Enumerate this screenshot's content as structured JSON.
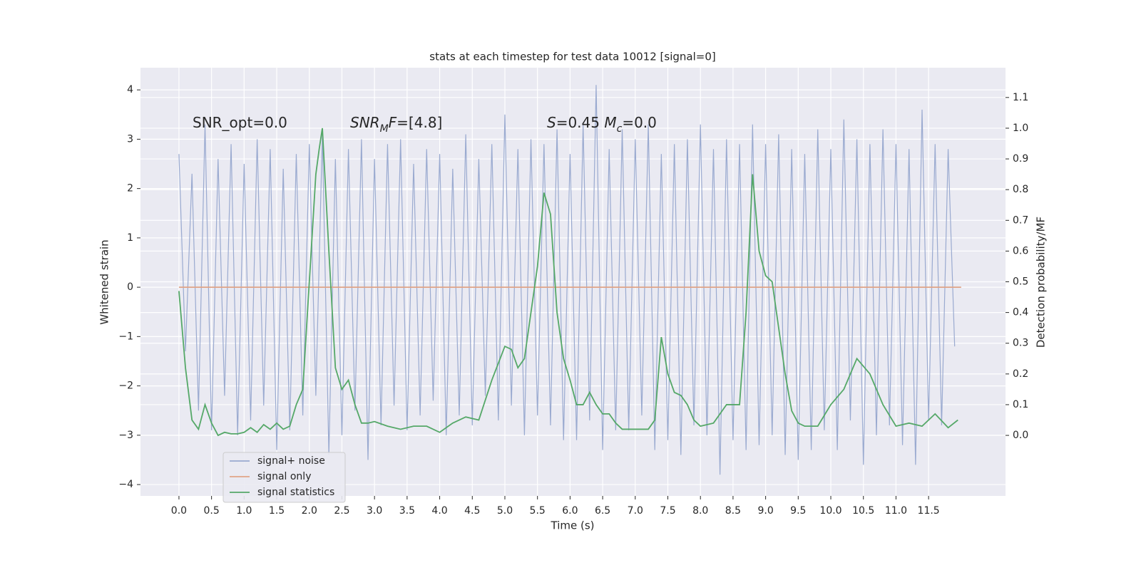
{
  "chart_data": {
    "type": "line",
    "title": "stats at each timestep for test data 10012 [signal=0]",
    "xlabel": "Time (s)",
    "ylabel": "Whitened strain",
    "y2label": "Detection probability/MF",
    "xlim": [
      -0.59,
      12.68
    ],
    "ylim": [
      -4.23,
      4.45
    ],
    "y2lim": [
      -0.197,
      1.197
    ],
    "xticks": [
      {
        "value": 0,
        "label": "0.0"
      },
      0.5,
      {
        "value": 1,
        "label": "1.0"
      },
      1.5,
      {
        "value": 2,
        "label": "2.0"
      },
      2.5,
      {
        "value": 3,
        "label": "3.0"
      },
      3.5,
      {
        "value": 4,
        "label": "4.0"
      },
      4.5,
      {
        "value": 5,
        "label": "5.0"
      },
      5.5,
      {
        "value": 6,
        "label": "6.0"
      },
      6.5,
      {
        "value": 7,
        "label": "7.0"
      },
      7.5,
      {
        "value": 8,
        "label": "8.0"
      },
      8.5,
      {
        "value": 9,
        "label": "9.0"
      },
      9.5,
      {
        "value": 10,
        "label": "10.0"
      },
      10.5,
      {
        "value": 11,
        "label": "11.0"
      },
      11.5
    ],
    "yticks": [
      {
        "value": -4,
        "label": "−4"
      },
      {
        "value": -3,
        "label": "−3"
      },
      {
        "value": -2,
        "label": "−2"
      },
      {
        "value": -1,
        "label": "−1"
      },
      0,
      1,
      2,
      3,
      4
    ],
    "y2ticks": [
      {
        "value": 0,
        "label": "0.0"
      },
      0.1,
      0.2,
      0.3,
      0.4,
      0.5,
      0.6,
      0.7,
      0.8,
      0.9,
      {
        "value": 1,
        "label": "1.0"
      },
      1.1
    ],
    "grid": true,
    "legend_loc": "lower left",
    "annotations": [
      [
        {
          "text": "SNR_opt=0.0"
        }
      ],
      [
        {
          "text": "SNR",
          "italic": true
        },
        {
          "text": "M",
          "italic": true,
          "sub": true
        },
        {
          "text": "F",
          "italic": true
        },
        {
          "text": "=[4.8]"
        }
      ],
      [
        {
          "text": "S",
          "italic": true
        },
        {
          "text": "=0.45  "
        },
        {
          "text": "M",
          "italic": true
        },
        {
          "text": "c",
          "italic": true,
          "sub": true
        },
        {
          "text": "=0.0"
        }
      ]
    ],
    "series": [
      {
        "name": "signal+ noise",
        "color": "#9aaad0",
        "axis": "y",
        "x": [
          0,
          0.1,
          0.2,
          0.3,
          0.4,
          0.5,
          0.6,
          0.7,
          0.8,
          0.9,
          1,
          1.1,
          1.2,
          1.3,
          1.4,
          1.5,
          1.6,
          1.7,
          1.8,
          1.9,
          2,
          2.1,
          2.2,
          2.3,
          2.4,
          2.5,
          2.6,
          2.7,
          2.8,
          2.9,
          3,
          3.1,
          3.2,
          3.3,
          3.4,
          3.5,
          3.6,
          3.7,
          3.8,
          3.9,
          4,
          4.1,
          4.2,
          4.3,
          4.4,
          4.5,
          4.6,
          4.7,
          4.8,
          4.9,
          5,
          5.1,
          5.2,
          5.3,
          5.4,
          5.5,
          5.6,
          5.7,
          5.8,
          5.9,
          6,
          6.1,
          6.2,
          6.3,
          6.4,
          6.5,
          6.6,
          6.7,
          6.8,
          6.9,
          7,
          7.1,
          7.2,
          7.3,
          7.4,
          7.5,
          7.6,
          7.7,
          7.8,
          7.9,
          8,
          8.1,
          8.2,
          8.3,
          8.4,
          8.5,
          8.6,
          8.7,
          8.8,
          8.9,
          9,
          9.1,
          9.2,
          9.3,
          9.4,
          9.5,
          9.6,
          9.7,
          9.8,
          9.9,
          10,
          10.1,
          10.2,
          10.3,
          10.4,
          10.5,
          10.6,
          10.7,
          10.8,
          10.9,
          11,
          11.1,
          11.2,
          11.3,
          11.4,
          11.5,
          11.6,
          11.7,
          11.8,
          11.9
        ],
        "values": [
          2.7,
          -1.3,
          2.3,
          -2.5,
          3.3,
          -2.9,
          2.6,
          -2.2,
          2.9,
          -3.0,
          2.5,
          -2.7,
          3.0,
          -2.4,
          2.8,
          -3.3,
          2.4,
          -2.9,
          2.7,
          -2.6,
          2.9,
          -2.2,
          3.1,
          -3.4,
          2.6,
          -3.0,
          2.8,
          -2.5,
          3.0,
          -3.5,
          2.6,
          -2.8,
          2.9,
          -2.4,
          3.0,
          -2.9,
          2.5,
          -2.6,
          2.8,
          -2.3,
          2.7,
          -3.0,
          2.4,
          -2.6,
          3.1,
          -2.8,
          2.6,
          -2.2,
          2.9,
          -2.7,
          3.5,
          -2.4,
          2.8,
          -3.0,
          3.0,
          -2.6,
          2.9,
          -2.8,
          3.2,
          -3.1,
          2.7,
          -3.1,
          3.3,
          -2.7,
          4.1,
          -3.3,
          2.8,
          -2.9,
          3.2,
          -2.9,
          3.0,
          -2.6,
          3.3,
          -3.3,
          2.7,
          -3.1,
          2.9,
          -3.4,
          3.0,
          -2.8,
          3.3,
          -3.0,
          2.8,
          -3.8,
          3.0,
          -3.1,
          2.9,
          -3.3,
          3.3,
          -3.2,
          2.9,
          -3.0,
          3.1,
          -3.4,
          2.8,
          -3.5,
          2.7,
          -3.3,
          3.2,
          -2.9,
          2.8,
          -3.3,
          3.4,
          -2.7,
          3.0,
          -3.6,
          2.9,
          -3.0,
          3.2,
          -2.8,
          2.9,
          -3.2,
          2.8,
          -3.6,
          3.6,
          -2.7,
          2.9,
          -2.8,
          2.8,
          -1.2
        ]
      },
      {
        "name": "signal only",
        "color": "#e0a487",
        "axis": "y",
        "x": [
          0,
          12
        ],
        "values": [
          0,
          0
        ]
      },
      {
        "name": "signal statistics",
        "color": "#55a868",
        "axis": "y2",
        "x": [
          0,
          0.1,
          0.2,
          0.3,
          0.4,
          0.5,
          0.6,
          0.7,
          0.8,
          0.9,
          1,
          1.1,
          1.2,
          1.3,
          1.4,
          1.5,
          1.6,
          1.7,
          1.8,
          1.9,
          2,
          2.1,
          2.15,
          2.2,
          2.3,
          2.4,
          2.5,
          2.6,
          2.7,
          2.8,
          2.9,
          3,
          3.2,
          3.4,
          3.6,
          3.8,
          4,
          4.2,
          4.4,
          4.6,
          4.8,
          5,
          5.1,
          5.2,
          5.3,
          5.4,
          5.5,
          5.6,
          5.7,
          5.8,
          5.9,
          6,
          6.1,
          6.2,
          6.3,
          6.4,
          6.5,
          6.6,
          6.7,
          6.8,
          7,
          7.2,
          7.3,
          7.4,
          7.5,
          7.6,
          7.7,
          7.8,
          7.9,
          8,
          8.2,
          8.4,
          8.6,
          8.7,
          8.8,
          8.9,
          9,
          9.1,
          9.2,
          9.3,
          9.4,
          9.5,
          9.6,
          9.8,
          10,
          10.2,
          10.4,
          10.6,
          10.8,
          11,
          11.2,
          11.4,
          11.6,
          11.8,
          11.95
        ],
        "values": [
          0.47,
          0.22,
          0.05,
          0.02,
          0.1,
          0.04,
          0.0,
          0.01,
          0.005,
          0.005,
          0.01,
          0.025,
          0.01,
          0.035,
          0.02,
          0.04,
          0.02,
          0.03,
          0.1,
          0.15,
          0.5,
          0.85,
          0.93,
          1.0,
          0.6,
          0.22,
          0.15,
          0.18,
          0.1,
          0.04,
          0.04,
          0.045,
          0.03,
          0.02,
          0.03,
          0.03,
          0.01,
          0.04,
          0.06,
          0.05,
          0.18,
          0.29,
          0.28,
          0.22,
          0.25,
          0.4,
          0.55,
          0.79,
          0.72,
          0.4,
          0.25,
          0.18,
          0.1,
          0.1,
          0.14,
          0.1,
          0.07,
          0.07,
          0.04,
          0.02,
          0.02,
          0.02,
          0.05,
          0.32,
          0.2,
          0.14,
          0.13,
          0.1,
          0.05,
          0.03,
          0.04,
          0.1,
          0.1,
          0.4,
          0.85,
          0.6,
          0.52,
          0.5,
          0.35,
          0.2,
          0.08,
          0.04,
          0.03,
          0.03,
          0.1,
          0.15,
          0.25,
          0.2,
          0.1,
          0.03,
          0.04,
          0.03,
          0.07,
          0.025,
          0.05
        ]
      }
    ]
  }
}
